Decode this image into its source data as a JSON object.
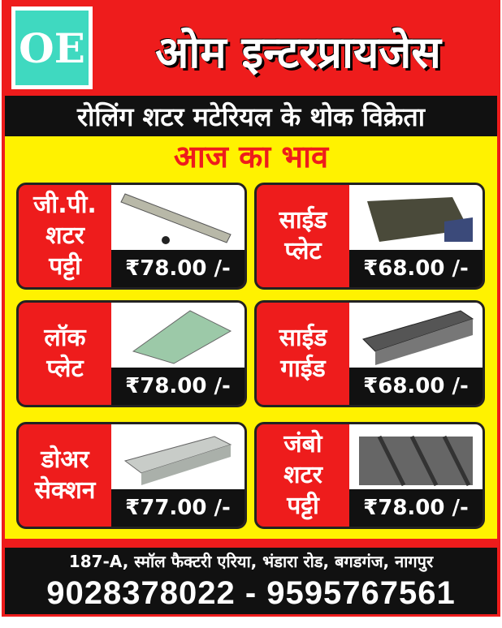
{
  "logo": {
    "text": "OE"
  },
  "title": "ओम इन्टरप्रायजेस",
  "tagline": "रोलिंग शटर मटेरियल के थोक विक्रेता",
  "heading": "आज का भाव",
  "products": [
    {
      "name": [
        "जी.पी.",
        "शटर",
        "पट्टी"
      ],
      "price": "₹78.00 /-kg.",
      "image": "shutter-strip"
    },
    {
      "name": [
        "साईड",
        "प्लेट"
      ],
      "price": "₹68.00 /-kg.",
      "image": "side-plate"
    },
    {
      "name": [
        "लॉक",
        "प्लेट"
      ],
      "price": "₹78.00 /-kg.",
      "image": "lock-plate"
    },
    {
      "name": [
        "साईड",
        "गाईड"
      ],
      "price": "₹68.00 /-kg.",
      "image": "side-guide"
    },
    {
      "name": [
        "डोअर",
        "सेक्शन"
      ],
      "price": "₹77.00 /-kg.",
      "image": "door-section"
    },
    {
      "name": [
        "जंबो",
        "शटर",
        "पट्टी"
      ],
      "price": "₹78.00 /-kg.",
      "image": "jumbo-shutter-strip"
    }
  ],
  "footer": {
    "address": "187-A, स्मॉल फैक्टरी एरिया, भंडारा रोड, बगडगंज, नागपुर",
    "phones": "9028378022 - 9595767561"
  },
  "colors": {
    "red": "#ee1c1c",
    "yellow": "#fff200",
    "black": "#111111",
    "logo": "#3fd9c0"
  }
}
